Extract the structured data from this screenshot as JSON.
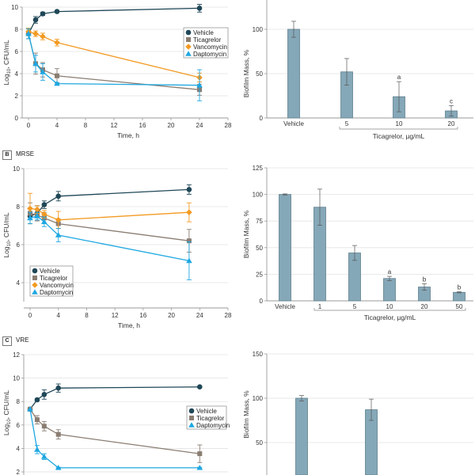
{
  "panels": [
    {
      "letter": "",
      "title": ""
    },
    {
      "letter": "B",
      "title": "MRSE"
    },
    {
      "letter": "C",
      "title": "VRE"
    }
  ],
  "colors": {
    "vehicle": "#1f4757",
    "ticagrelor": "#8a7d72",
    "vancomycin": "#f39a22",
    "daptomycin": "#1ea7e1",
    "bar": "#85a8b8",
    "bar_edge": "#5f7f8e",
    "grid": "#e3e3e3",
    "axis": "#9a9a9a"
  },
  "chart_data": [
    {
      "id": "A-line",
      "type": "line",
      "xlabel": "Time, h",
      "ylabel": "Log10, CFU/mL",
      "xlim": [
        0,
        28
      ],
      "ylim": [
        0,
        10
      ],
      "xticks": [
        0,
        4,
        8,
        12,
        16,
        20,
        24,
        28
      ],
      "yticks": [
        0,
        2,
        4,
        6,
        8,
        10
      ],
      "grid": true,
      "legend_position": "center-right",
      "series": [
        {
          "name": "Vehicle",
          "key": "vehicle",
          "marker": "circle",
          "x": [
            0,
            1,
            2,
            4,
            24
          ],
          "y": [
            7.6,
            8.85,
            9.4,
            9.6,
            9.9
          ],
          "err": [
            0.45,
            0.3,
            0.15,
            0.1,
            0.35
          ]
        },
        {
          "name": "Ticagrelor",
          "key": "ticagrelor",
          "marker": "square",
          "x": [
            0,
            1,
            2,
            4,
            24
          ],
          "y": [
            7.6,
            4.9,
            4.35,
            3.8,
            2.55
          ],
          "err": [
            0.45,
            0.95,
            0.65,
            0.65,
            0.5
          ]
        },
        {
          "name": "Vancomycin",
          "key": "vancomycin",
          "marker": "diamond",
          "x": [
            0,
            1,
            2,
            4,
            24
          ],
          "y": [
            7.8,
            7.6,
            7.35,
            6.8,
            3.65
          ],
          "err": [
            0.3,
            0.25,
            0.3,
            0.3,
            0.4
          ]
        },
        {
          "name": "Daptomycin",
          "key": "daptomycin",
          "marker": "triangle",
          "x": [
            0,
            1,
            2,
            4,
            24
          ],
          "y": [
            7.6,
            4.9,
            4.15,
            3.1,
            2.95
          ],
          "err": [
            0.45,
            0.75,
            0.75,
            0.1,
            1.4
          ]
        }
      ]
    },
    {
      "id": "A-bar",
      "type": "bar",
      "ylabel": "Biofilm Mass, %",
      "xlabel": "Ticagrelor, µg/mL",
      "categories": [
        "Vehicle",
        "5",
        "10",
        "20"
      ],
      "values": [
        100,
        52,
        24,
        8
      ],
      "errors": [
        9,
        15,
        17,
        6
      ],
      "annotations": [
        "",
        "",
        "a",
        "c"
      ],
      "ylim": [
        0,
        100
      ],
      "yticks": [
        0,
        50,
        100
      ],
      "grid": true
    },
    {
      "id": "B-line",
      "type": "line",
      "xlabel": "Time, h",
      "ylabel": "Log10, CFU/mL",
      "xlim": [
        0,
        28
      ],
      "ylim": [
        3,
        10
      ],
      "xticks": [
        0,
        4,
        8,
        12,
        16,
        20,
        24,
        28
      ],
      "yticks": [
        4,
        6,
        8,
        10
      ],
      "grid": true,
      "legend_position": "bottom-left",
      "series": [
        {
          "name": "Vehicle",
          "key": "vehicle",
          "marker": "circle",
          "x": [
            0,
            1,
            2,
            4,
            22.5
          ],
          "y": [
            7.5,
            7.65,
            8.1,
            8.55,
            8.9
          ],
          "err": [
            0.4,
            0.4,
            0.2,
            0.25,
            0.25
          ]
        },
        {
          "name": "Ticagrelor",
          "key": "ticagrelor",
          "marker": "square",
          "x": [
            0,
            1,
            2,
            4,
            22.5
          ],
          "y": [
            7.65,
            7.55,
            7.4,
            7.1,
            6.2
          ],
          "err": [
            0.55,
            0.3,
            0.3,
            0.25,
            0.6
          ]
        },
        {
          "name": "Vancomycin",
          "key": "vancomycin",
          "marker": "diamond",
          "x": [
            0,
            1,
            2,
            4,
            22.5
          ],
          "y": [
            7.9,
            7.85,
            7.6,
            7.3,
            7.7
          ],
          "err": [
            0.8,
            0.2,
            0.2,
            0.45,
            0.5
          ]
        },
        {
          "name": "Daptomycin",
          "key": "daptomycin",
          "marker": "triangle",
          "x": [
            0,
            1,
            2,
            4,
            22.5
          ],
          "y": [
            7.4,
            7.5,
            7.2,
            6.5,
            5.15
          ],
          "err": [
            0.3,
            0.2,
            0.25,
            0.35,
            1.0
          ]
        }
      ]
    },
    {
      "id": "B-bar",
      "type": "bar",
      "ylabel": "Biofilm Mass, %",
      "xlabel": "Ticagrelor, µg/mL",
      "categories": [
        "Vehicle",
        "1",
        "5",
        "10",
        "20",
        "50"
      ],
      "values": [
        100,
        88,
        45,
        21,
        13,
        8
      ],
      "errors": [
        0.5,
        17,
        7,
        2,
        3,
        0.5
      ],
      "annotations": [
        "",
        "",
        "",
        "a",
        "b",
        "b"
      ],
      "ylim": [
        0,
        125
      ],
      "yticks": [
        0,
        25,
        50,
        75,
        100,
        125
      ],
      "grid": true
    },
    {
      "id": "C-line",
      "type": "line",
      "xlabel": "",
      "ylabel": "Log10, CFU/mL",
      "xlim": [
        0,
        28
      ],
      "ylim": [
        1.7,
        12
      ],
      "yticks": [
        2,
        4,
        6,
        8,
        10,
        12
      ],
      "grid": true,
      "legend_position": "center-right",
      "series": [
        {
          "name": "Vehicle",
          "key": "vehicle",
          "marker": "circle",
          "x": [
            0,
            1,
            2,
            4,
            24
          ],
          "y": [
            7.35,
            8.15,
            8.6,
            9.15,
            9.25
          ],
          "err": [
            0,
            0.1,
            0.4,
            0.35,
            0.05
          ]
        },
        {
          "name": "Ticagrelor",
          "key": "ticagrelor",
          "marker": "square",
          "x": [
            0,
            1,
            2,
            4,
            24
          ],
          "y": [
            7.35,
            6.45,
            5.9,
            5.2,
            3.55
          ],
          "err": [
            0,
            0.35,
            0.4,
            0.4,
            0.75
          ]
        },
        {
          "name": "Daptomycin",
          "key": "daptomycin",
          "marker": "triangle",
          "x": [
            0,
            1,
            2,
            4,
            24
          ],
          "y": [
            7.35,
            3.9,
            3.3,
            2.35,
            2.35
          ],
          "err": [
            0,
            0.35,
            0.25,
            0.05,
            0.05
          ]
        }
      ]
    },
    {
      "id": "C-bar",
      "type": "bar",
      "ylabel": "Biofilm Mass, %",
      "categories": [
        "",
        ""
      ],
      "values": [
        100,
        87
      ],
      "errors": [
        3,
        12
      ],
      "ylim": [
        0,
        150
      ],
      "yticks": [
        50,
        100,
        150
      ],
      "grid": true
    }
  ]
}
